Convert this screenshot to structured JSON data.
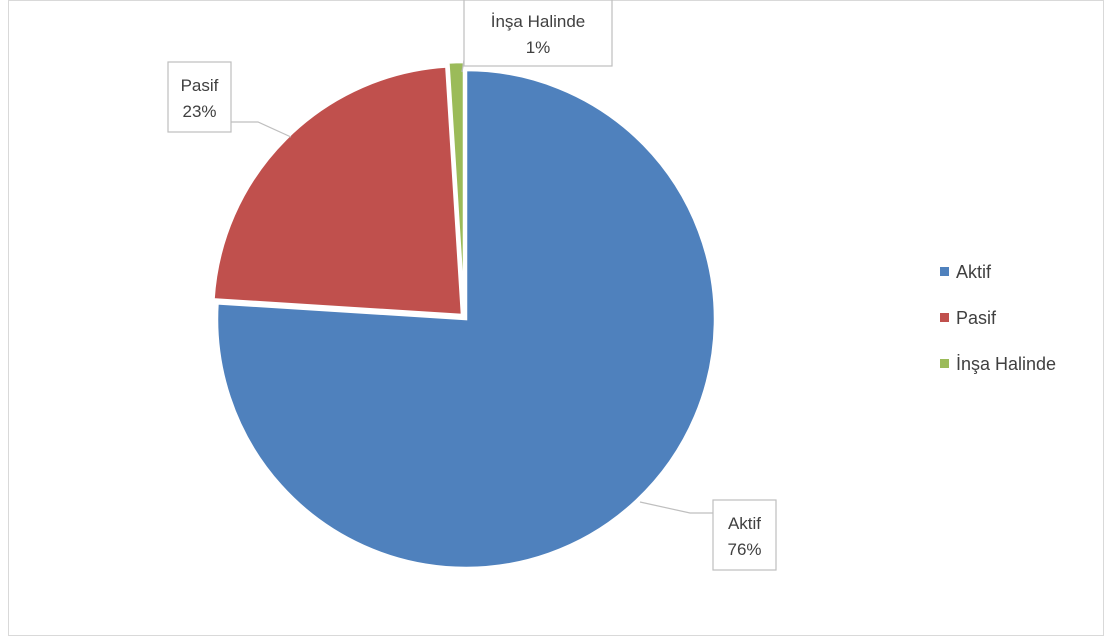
{
  "chart_data": {
    "type": "pie",
    "title": "",
    "categories": [
      "Aktif",
      "Pasif",
      "İnşa Halinde"
    ],
    "values": [
      76,
      23,
      1
    ],
    "data_labels": [
      {
        "name": "Aktif",
        "value": "76%"
      },
      {
        "name": "Pasif",
        "value": "23%"
      },
      {
        "name": "İnşa Halinde",
        "value": "1%"
      }
    ],
    "colors": [
      "#4f81bd",
      "#c0504d",
      "#9bbb59"
    ],
    "legend": {
      "position": "right",
      "entries": [
        "Aktif",
        "Pasif",
        "İnşa Halinde"
      ]
    },
    "slice_offset": "pasif-and-insa-exploded-slightly"
  }
}
